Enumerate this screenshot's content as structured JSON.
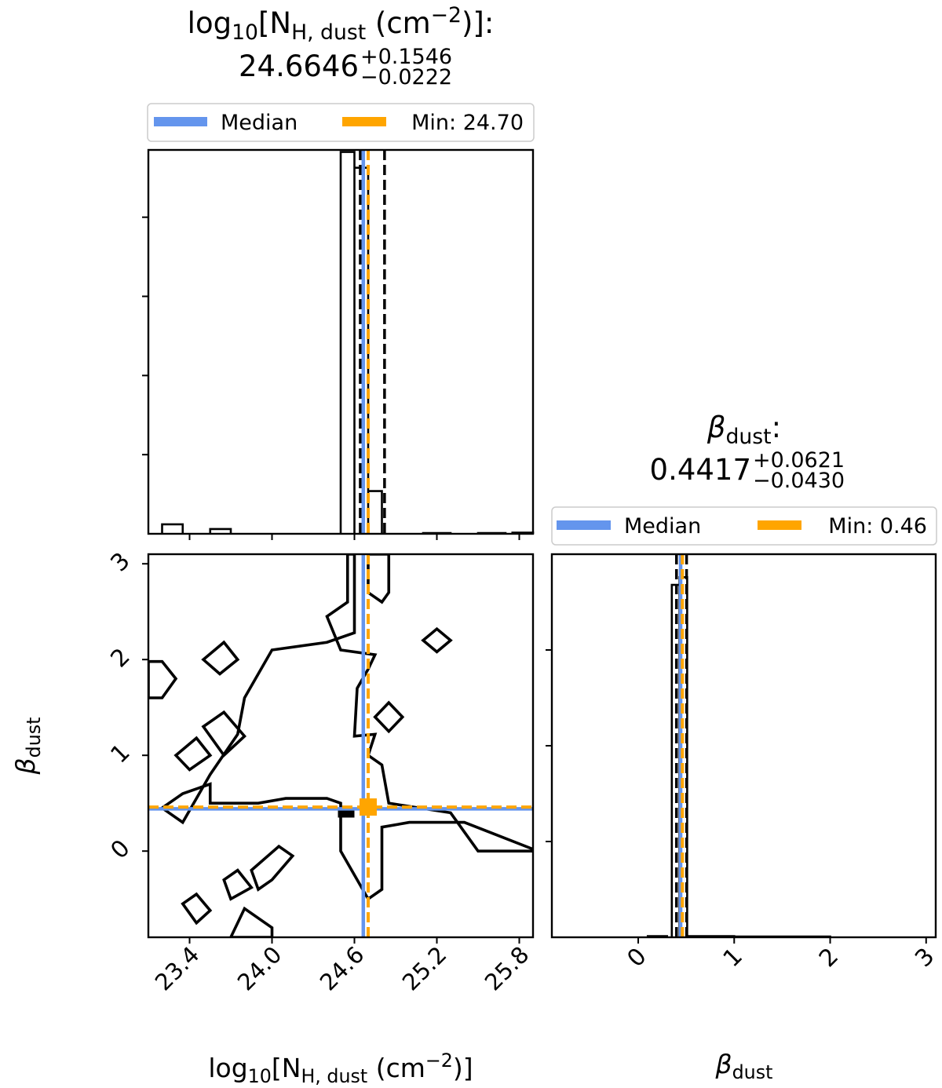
{
  "chart_data": {
    "type": "corner",
    "parameters": [
      {
        "key": "nh",
        "label": {
          "prefix": "log",
          "prefix_sub": "10",
          "open": "[N",
          "sub": "H, dust",
          "unit": " (cm",
          "unit_sup": "−2",
          "close": ")]"
        },
        "median": "24.6646",
        "err_plus": "+0.1546",
        "err_minus": "−0.0222",
        "median_value": 24.6646,
        "lower_value": 24.6424,
        "upper_value": 24.8192,
        "min_value": 24.7,
        "range": [
          23.1,
          25.9
        ],
        "ticks": [
          "23.4",
          "24.0",
          "24.6",
          "25.2",
          "25.8"
        ],
        "tick_values": [
          23.4,
          24.0,
          24.6,
          25.2,
          25.8
        ],
        "legend": {
          "median": "Median",
          "min": "Min: 24.70"
        },
        "hist_density_max": 0.97,
        "hist_ticks": [
          0.2,
          0.4,
          0.6,
          0.8
        ],
        "hist_bins": [
          {
            "x0": 23.2,
            "x1": 23.35,
            "h": 0.024
          },
          {
            "x0": 23.55,
            "x1": 23.7,
            "h": 0.012
          },
          {
            "x0": 24.5,
            "x1": 24.6,
            "h": 0.965
          },
          {
            "x0": 24.6,
            "x1": 24.7,
            "h": 0.925
          },
          {
            "x0": 24.7,
            "x1": 24.8,
            "h": 0.108
          },
          {
            "x0": 25.1,
            "x1": 25.3,
            "h": 0.002
          },
          {
            "x0": 25.5,
            "x1": 25.7,
            "h": 0.002
          },
          {
            "x0": 25.75,
            "x1": 25.9,
            "h": 0.003
          }
        ]
      },
      {
        "key": "beta",
        "label": {
          "prefix": "β",
          "sub": "dust"
        },
        "median": "0.4417",
        "err_plus": "+0.0621",
        "err_minus": "−0.0430",
        "median_value": 0.4417,
        "lower_value": 0.3987,
        "upper_value": 0.5038,
        "min_value": 0.46,
        "range": [
          -0.9,
          3.1
        ],
        "ticks": [
          "0",
          "1",
          "2",
          "3"
        ],
        "tick_values": [
          0,
          1,
          2,
          3
        ],
        "legend": {
          "median": "Median",
          "min": "Min: 0.46"
        },
        "hist_density_max": 1.0,
        "hist_ticks": [
          0.25,
          0.5,
          0.75
        ],
        "hist_bins": [
          {
            "x0": 0.1,
            "x1": 0.3,
            "h": 0.003
          },
          {
            "x0": 0.35,
            "x1": 0.43,
            "h": 0.92
          },
          {
            "x0": 0.43,
            "x1": 0.51,
            "h": 0.94
          },
          {
            "x0": 0.51,
            "x1": 1.0,
            "h": 0.003
          },
          {
            "x0": 1.0,
            "x1": 2.0,
            "h": 0.002
          }
        ]
      }
    ],
    "contours_2d": [
      [
        [
          23.1,
          1.98
        ],
        [
          23.2,
          1.98
        ],
        [
          23.3,
          1.8
        ],
        [
          23.2,
          1.6
        ],
        [
          23.1,
          1.6
        ]
      ],
      [
        [
          24.6,
          3.1
        ],
        [
          24.6,
          2.28
        ],
        [
          24.4,
          2.18
        ],
        [
          24.0,
          2.1
        ],
        [
          23.8,
          1.6
        ],
        [
          23.75,
          1.22
        ],
        [
          23.55,
          0.8
        ],
        [
          23.35,
          0.3
        ],
        [
          23.2,
          0.45
        ],
        [
          23.35,
          0.6
        ],
        [
          23.55,
          0.7
        ],
        [
          23.55,
          0.5
        ],
        [
          23.9,
          0.5
        ],
        [
          24.1,
          0.55
        ],
        [
          24.4,
          0.55
        ],
        [
          24.5,
          0.5
        ],
        [
          24.5,
          0.0
        ],
        [
          24.7,
          -0.5
        ],
        [
          24.8,
          -0.4
        ],
        [
          24.8,
          0.25
        ],
        [
          25.0,
          0.3
        ],
        [
          25.4,
          0.3
        ],
        [
          25.9,
          0.02
        ],
        [
          25.9,
          0.0
        ],
        [
          25.5,
          0.0
        ],
        [
          25.3,
          0.4
        ],
        [
          24.85,
          0.5
        ],
        [
          24.8,
          0.9
        ],
        [
          24.7,
          1.0
        ],
        [
          24.75,
          1.22
        ],
        [
          24.6,
          1.2
        ],
        [
          24.62,
          1.7
        ],
        [
          24.7,
          1.9
        ],
        [
          24.75,
          2.05
        ],
        [
          24.5,
          2.1
        ],
        [
          24.4,
          2.45
        ],
        [
          24.55,
          2.6
        ],
        [
          24.55,
          3.1
        ]
      ],
      [
        [
          24.7,
          3.1
        ],
        [
          24.7,
          2.7
        ],
        [
          24.8,
          2.6
        ],
        [
          24.85,
          2.7
        ],
        [
          24.85,
          3.1
        ]
      ],
      [
        [
          25.1,
          2.2
        ],
        [
          25.2,
          2.32
        ],
        [
          25.3,
          2.2
        ],
        [
          25.2,
          2.08
        ]
      ],
      [
        [
          23.5,
          2.0
        ],
        [
          23.65,
          2.18
        ],
        [
          23.75,
          2.0
        ],
        [
          23.62,
          1.85
        ]
      ],
      [
        [
          23.5,
          1.3
        ],
        [
          23.65,
          1.45
        ],
        [
          23.8,
          1.2
        ],
        [
          23.65,
          1.0
        ]
      ],
      [
        [
          23.3,
          1.0
        ],
        [
          23.45,
          1.18
        ],
        [
          23.55,
          1.0
        ],
        [
          23.4,
          0.85
        ]
      ],
      [
        [
          24.75,
          1.4
        ],
        [
          24.85,
          1.55
        ],
        [
          24.95,
          1.4
        ],
        [
          24.85,
          1.25
        ]
      ],
      [
        [
          23.85,
          -0.2
        ],
        [
          24.05,
          0.05
        ],
        [
          24.15,
          -0.05
        ],
        [
          24.0,
          -0.3
        ],
        [
          23.9,
          -0.4
        ]
      ],
      [
        [
          23.65,
          -0.3
        ],
        [
          23.75,
          -0.2
        ],
        [
          23.85,
          -0.38
        ],
        [
          23.7,
          -0.5
        ]
      ],
      [
        [
          23.35,
          -0.55
        ],
        [
          23.45,
          -0.45
        ],
        [
          23.55,
          -0.62
        ],
        [
          23.45,
          -0.75
        ]
      ],
      [
        [
          23.7,
          -0.9
        ],
        [
          23.8,
          -0.6
        ],
        [
          24.0,
          -0.8
        ],
        [
          24.0,
          -0.9
        ]
      ]
    ],
    "colors": {
      "median": "#6495ed",
      "min": "#ffa500",
      "quantile": "#000000",
      "contour": "#000000"
    }
  }
}
